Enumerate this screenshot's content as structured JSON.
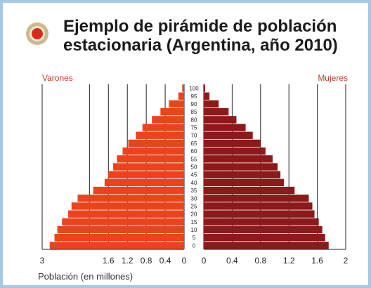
{
  "title_lines": [
    "Ejemplo de pirámide de población",
    "estacionaria (Argentina, año 2010)"
  ],
  "colors": {
    "male_bar": "#e8451e",
    "female_bar": "#8b1a1a",
    "gridline": "#222222",
    "frame": "#a7c7e7",
    "bullet": "#d92a1c",
    "label": "#c0392b"
  },
  "chart_data": {
    "type": "bar",
    "orientation": "population-pyramid",
    "title": "Ejemplo de pirámide de población estacionaria (Argentina, año 2010)",
    "xlabel": "Población (en millones)",
    "age_ticks": [
      "100",
      "95",
      "90",
      "85",
      "80",
      "75",
      "70",
      "65",
      "60",
      "55",
      "50",
      "45",
      "40",
      "35",
      "30",
      "25",
      "20",
      "15",
      "10",
      "5",
      "0"
    ],
    "categories": [
      "0",
      "5",
      "10",
      "15",
      "20",
      "25",
      "30",
      "35",
      "40",
      "45",
      "50",
      "55",
      "60",
      "65",
      "70",
      "75",
      "80",
      "85",
      "90",
      "95",
      "100"
    ],
    "series": [
      {
        "name": "Varones",
        "side": "left",
        "xlim": [
          0,
          3
        ],
        "ticks": [
          "3",
          "1.6",
          "1.2",
          "0.8",
          "0.4",
          "0"
        ],
        "values": [
          2.84,
          2.74,
          2.68,
          2.58,
          2.45,
          2.38,
          2.25,
          1.92,
          1.68,
          1.61,
          1.5,
          1.42,
          1.3,
          1.18,
          1.02,
          0.88,
          0.68,
          0.5,
          0.32,
          0.12,
          0.04
        ]
      },
      {
        "name": "Mujeres",
        "side": "right",
        "xlim": [
          0,
          2
        ],
        "ticks": [
          "0",
          "0.4",
          "0.8",
          "1.2",
          "1.6",
          "2"
        ],
        "values": [
          1.76,
          1.71,
          1.67,
          1.62,
          1.56,
          1.53,
          1.48,
          1.28,
          1.13,
          1.08,
          1.04,
          0.97,
          0.87,
          0.8,
          0.69,
          0.59,
          0.46,
          0.35,
          0.21,
          0.08,
          0.02
        ]
      }
    ],
    "grid": true
  }
}
